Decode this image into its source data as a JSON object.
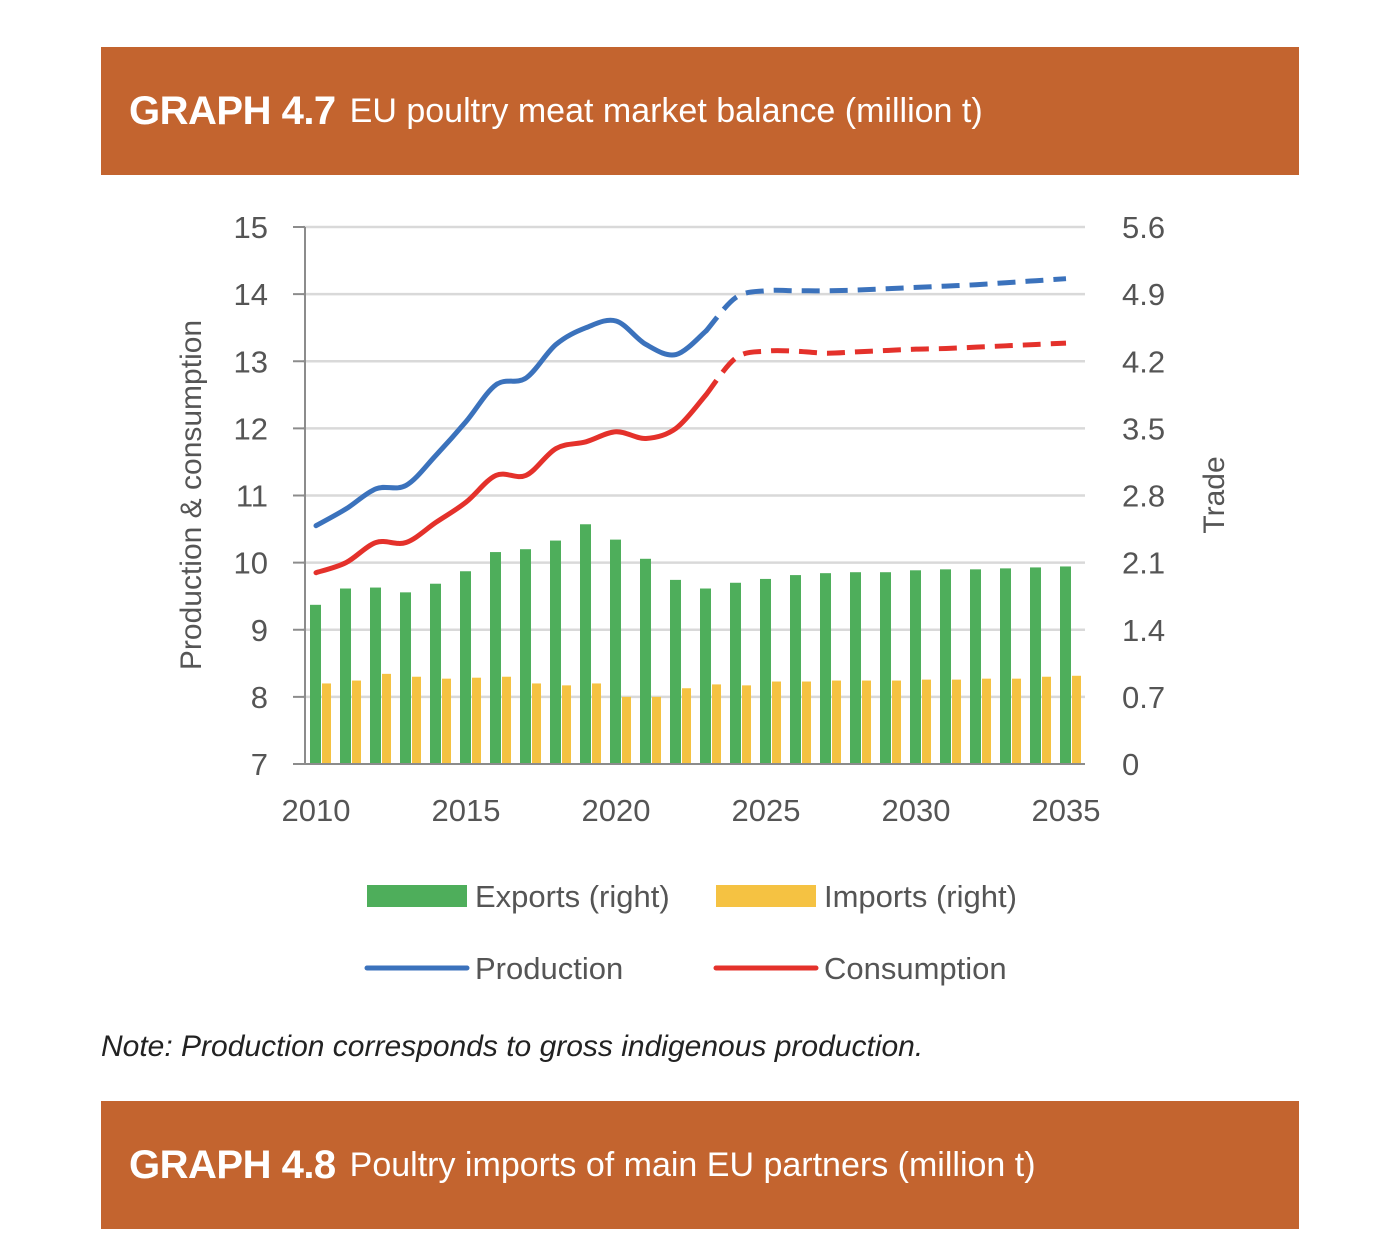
{
  "graphs": [
    {
      "number": "GRAPH 4.7",
      "title": "EU poultry meat market balance (million t)"
    },
    {
      "number": "GRAPH 4.8",
      "title": "Poultry imports of main EU partners (million t)"
    }
  ],
  "note": "Note: Production corresponds to gross indigenous production.",
  "chart_data": {
    "type": "bar+line",
    "x": [
      2010,
      2011,
      2012,
      2013,
      2014,
      2015,
      2016,
      2017,
      2018,
      2019,
      2020,
      2021,
      2022,
      2023,
      2024,
      2025,
      2026,
      2027,
      2028,
      2029,
      2030,
      2031,
      2032,
      2033,
      2034,
      2035
    ],
    "x_ticks": [
      "2010",
      "2015",
      "2020",
      "2025",
      "2030",
      "2035"
    ],
    "y_left": {
      "label": "Production & consumption",
      "range": [
        7,
        15
      ],
      "ticks": [
        "7",
        "8",
        "9",
        "10",
        "11",
        "12",
        "13",
        "14",
        "15"
      ]
    },
    "y_right": {
      "label": "Trade",
      "range": [
        0,
        5.6
      ],
      "ticks": [
        "0",
        "0.7",
        "1.4",
        "2.1",
        "2.8",
        "3.5",
        "4.2",
        "4.9",
        "5.6"
      ]
    },
    "projection_start": 2023,
    "series": [
      {
        "name": "Exports (right)",
        "type": "bar",
        "axis": "right",
        "color": "#4EAE5B",
        "values": [
          1.66,
          1.83,
          1.84,
          1.79,
          1.88,
          2.01,
          2.21,
          2.24,
          2.33,
          2.5,
          2.34,
          2.14,
          1.92,
          1.83,
          1.89,
          1.93,
          1.97,
          1.99,
          2.0,
          2.0,
          2.02,
          2.03,
          2.03,
          2.04,
          2.05,
          2.06
        ]
      },
      {
        "name": "Imports (right)",
        "type": "bar",
        "axis": "right",
        "color": "#F5C242",
        "values": [
          0.84,
          0.87,
          0.94,
          0.91,
          0.89,
          0.9,
          0.91,
          0.84,
          0.82,
          0.84,
          0.7,
          0.7,
          0.79,
          0.83,
          0.82,
          0.86,
          0.86,
          0.87,
          0.87,
          0.87,
          0.88,
          0.88,
          0.89,
          0.89,
          0.91,
          0.92
        ]
      },
      {
        "name": "Production",
        "type": "line",
        "axis": "left",
        "color": "#3B72BC",
        "values": [
          10.55,
          10.8,
          11.1,
          11.15,
          11.6,
          12.1,
          12.65,
          12.75,
          13.25,
          13.5,
          13.6,
          13.25,
          13.1,
          13.45,
          13.95,
          14.05,
          14.05,
          14.05,
          14.06,
          14.08,
          14.1,
          14.12,
          14.14,
          14.17,
          14.2,
          14.23
        ]
      },
      {
        "name": "Consumption",
        "type": "line",
        "axis": "left",
        "color": "#E4312B",
        "values": [
          9.85,
          10.0,
          10.3,
          10.3,
          10.6,
          10.9,
          11.3,
          11.3,
          11.7,
          11.8,
          11.95,
          11.85,
          12.0,
          12.5,
          13.05,
          13.15,
          13.15,
          13.12,
          13.14,
          13.16,
          13.18,
          13.19,
          13.21,
          13.23,
          13.25,
          13.27
        ]
      }
    ]
  }
}
